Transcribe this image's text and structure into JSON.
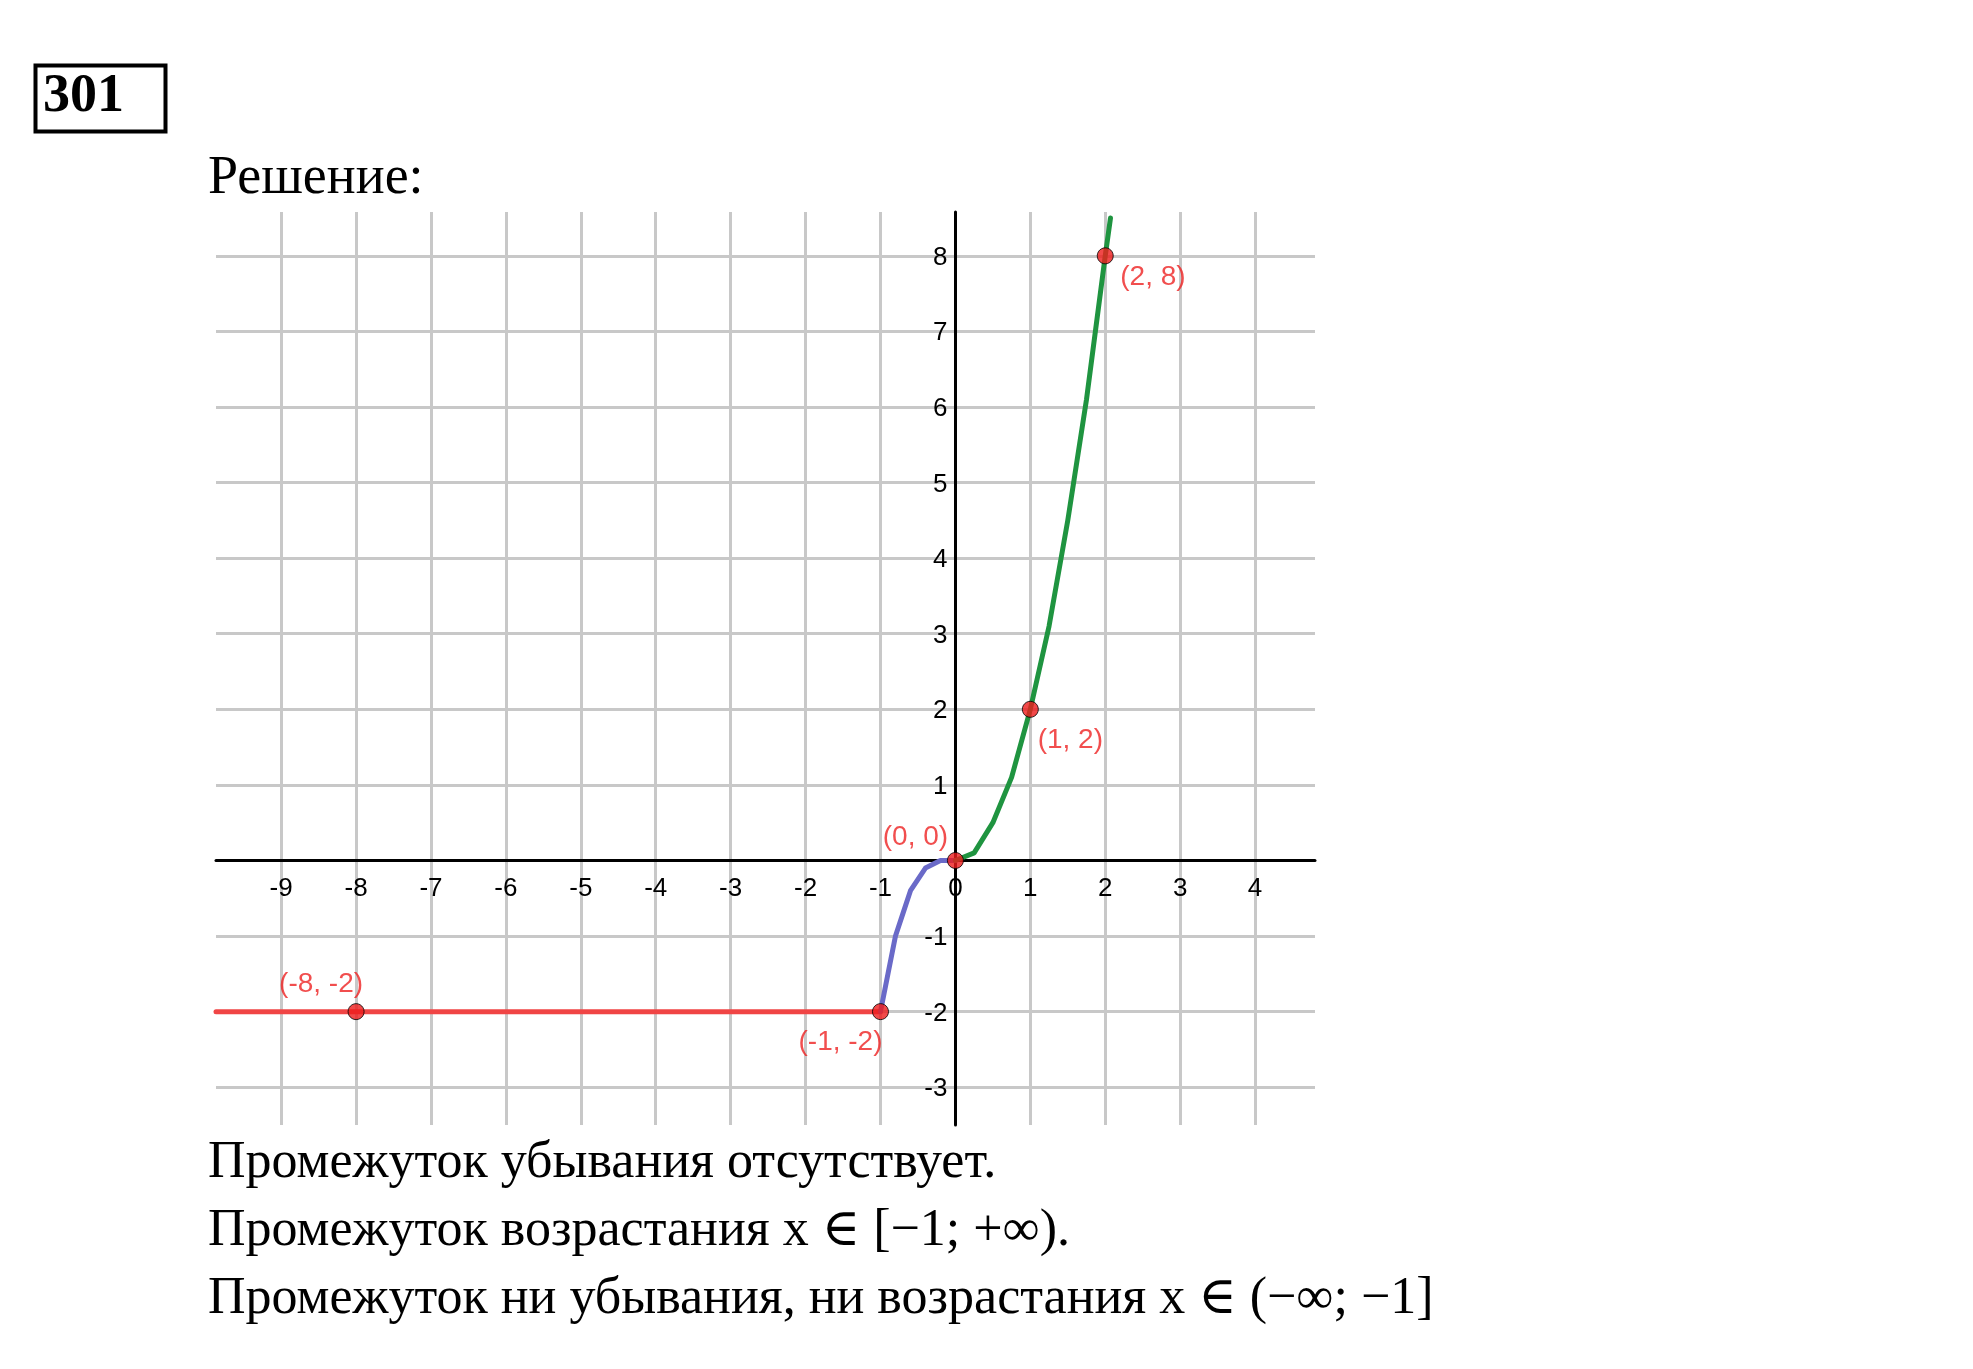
{
  "chart_data": {
    "type": "line",
    "title": "Решение:",
    "xlim": [
      -9.87,
      4.8
    ],
    "ylim": [
      -3.5,
      8.58
    ],
    "xticks": [
      -9,
      -8,
      -7,
      -6,
      -5,
      -4,
      -3,
      -2,
      -1,
      0,
      1,
      2,
      3,
      4
    ],
    "yticks": [
      -3,
      -2,
      -1,
      1,
      2,
      3,
      4,
      5,
      6,
      7,
      8
    ],
    "grid": true,
    "line_style": "solid",
    "marker": "none",
    "series": [
      {
        "color": "#f04545",
        "x": [
          -9.87,
          -1
        ],
        "values": [
          -2,
          -2
        ]
      },
      {
        "color": "#6a6ac8",
        "x": [
          -1,
          -0.9,
          -0.8,
          -0.7,
          -0.6,
          -0.5,
          -0.4,
          -0.3,
          -0.2,
          -0.1,
          0
        ],
        "values": [
          -2,
          -1.5,
          -1,
          -0.7,
          -0.4,
          -0.25,
          -0.1,
          -0.05,
          0,
          0,
          0
        ]
      },
      {
        "color": "#1f9440",
        "x": [
          0,
          0.25,
          0.5,
          0.75,
          1,
          1.25,
          1.5,
          1.75,
          2,
          2.07
        ],
        "values": [
          0,
          0.1,
          0.5,
          1.1,
          2,
          3.1,
          4.5,
          6.1,
          8,
          8.5
        ]
      },
      {
        "type": "scatter",
        "marker": "circle",
        "color": "#ee1c1c",
        "x": [
          -8,
          -1,
          0,
          1,
          2
        ],
        "values": [
          -2,
          -2,
          0,
          2,
          8
        ]
      }
    ],
    "annotations": [
      "301",
      {
        "text": "(2, 8)",
        "x": 2,
        "y": 8
      },
      {
        "text": "(1, 2)",
        "x": 1,
        "y": 2
      },
      {
        "text": "(0, 0)",
        "x": 0,
        "y": 0
      },
      {
        "text": "(-1, -2)",
        "x": -1,
        "y": -2
      },
      {
        "text": "(-8, -2)",
        "x": -8,
        "y": -2
      },
      "Промежуток убывания отсутствует.",
      "Промежуток возрастания x ∈ [−1; +∞).",
      "Промежуток ни убывания, ни возрастания x ∈ (−∞; −1]"
    ]
  }
}
